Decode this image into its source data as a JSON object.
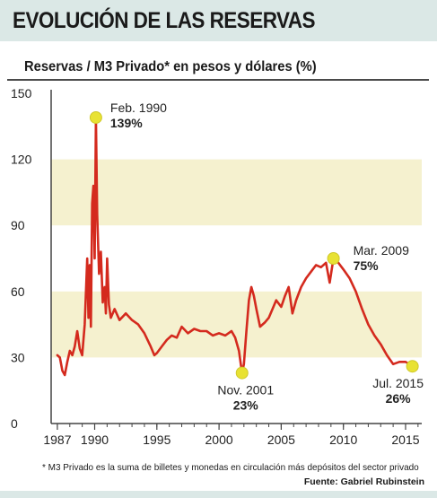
{
  "header": {
    "title": "EVOLUCIÓN DE LAS RESERVAS",
    "subtitle": "Reservas / M3 Privado* en pesos y dólares (%)"
  },
  "footer": {
    "footnote": "* M3 Privado es la suma de billetes y monedas en circulación más depósitos del sector privado",
    "source": "Fuente: Gabriel Rubinstein"
  },
  "colors": {
    "line": "#d42a1e",
    "band": "#f5f1cf",
    "marker": "#e8e233",
    "header_bg": "#dbe8e6",
    "axis": "#444444"
  },
  "chart_data": {
    "type": "line",
    "title": "Reservas / M3 Privado* en pesos y dólares (%)",
    "ylim": [
      0,
      150
    ],
    "xlim": [
      1986.5,
      2016.3
    ],
    "y_ticks": [
      0,
      30,
      60,
      90,
      120,
      150
    ],
    "x_ticks": [
      1987,
      1990,
      1995,
      2000,
      2005,
      2010,
      2015
    ],
    "grid": "alternating horizontal bands",
    "series": [
      {
        "points": [
          [
            1987.0,
            31
          ],
          [
            1987.2,
            30
          ],
          [
            1987.4,
            24
          ],
          [
            1987.6,
            22
          ],
          [
            1987.8,
            28
          ],
          [
            1988.0,
            33
          ],
          [
            1988.2,
            31
          ],
          [
            1988.4,
            35
          ],
          [
            1988.6,
            42
          ],
          [
            1988.8,
            34
          ],
          [
            1989.0,
            31
          ],
          [
            1989.2,
            45
          ],
          [
            1989.4,
            75
          ],
          [
            1989.5,
            48
          ],
          [
            1989.6,
            72
          ],
          [
            1989.7,
            44
          ],
          [
            1989.8,
            100
          ],
          [
            1989.9,
            108
          ],
          [
            1990.0,
            75
          ],
          [
            1990.1,
            139
          ],
          [
            1990.2,
            95
          ],
          [
            1990.35,
            68
          ],
          [
            1990.5,
            78
          ],
          [
            1990.65,
            55
          ],
          [
            1990.8,
            62
          ],
          [
            1990.9,
            50
          ],
          [
            1991.0,
            75
          ],
          [
            1991.15,
            54
          ],
          [
            1991.3,
            48
          ],
          [
            1991.6,
            52
          ],
          [
            1992.0,
            47
          ],
          [
            1992.5,
            50
          ],
          [
            1993.0,
            47
          ],
          [
            1993.5,
            45
          ],
          [
            1994.0,
            41
          ],
          [
            1994.5,
            35
          ],
          [
            1994.8,
            31
          ],
          [
            1995.0,
            32
          ],
          [
            1995.4,
            35
          ],
          [
            1995.8,
            38
          ],
          [
            1996.2,
            40
          ],
          [
            1996.6,
            39
          ],
          [
            1997.0,
            44
          ],
          [
            1997.5,
            41
          ],
          [
            1998.0,
            43
          ],
          [
            1998.5,
            42
          ],
          [
            1999.0,
            42
          ],
          [
            1999.5,
            40
          ],
          [
            2000.0,
            41
          ],
          [
            2000.5,
            40
          ],
          [
            2001.0,
            42
          ],
          [
            2001.3,
            39
          ],
          [
            2001.6,
            33
          ],
          [
            2001.85,
            23
          ],
          [
            2002.0,
            27
          ],
          [
            2002.2,
            42
          ],
          [
            2002.4,
            56
          ],
          [
            2002.6,
            62
          ],
          [
            2002.8,
            58
          ],
          [
            2003.0,
            52
          ],
          [
            2003.3,
            44
          ],
          [
            2003.7,
            46
          ],
          [
            2004.0,
            48
          ],
          [
            2004.3,
            52
          ],
          [
            2004.6,
            56
          ],
          [
            2005.0,
            53
          ],
          [
            2005.3,
            58
          ],
          [
            2005.6,
            62
          ],
          [
            2005.9,
            50
          ],
          [
            2006.2,
            56
          ],
          [
            2006.6,
            62
          ],
          [
            2007.0,
            66
          ],
          [
            2007.4,
            69
          ],
          [
            2007.8,
            72
          ],
          [
            2008.2,
            71
          ],
          [
            2008.6,
            73
          ],
          [
            2008.9,
            64
          ],
          [
            2009.2,
            75
          ],
          [
            2009.6,
            73
          ],
          [
            2010.0,
            70
          ],
          [
            2010.5,
            66
          ],
          [
            2011.0,
            60
          ],
          [
            2011.5,
            52
          ],
          [
            2012.0,
            45
          ],
          [
            2012.5,
            40
          ],
          [
            2013.0,
            36
          ],
          [
            2013.5,
            31
          ],
          [
            2014.0,
            27
          ],
          [
            2014.5,
            28
          ],
          [
            2015.0,
            28
          ],
          [
            2015.3,
            27
          ],
          [
            2015.55,
            26
          ],
          [
            2015.8,
            26.5
          ]
        ]
      }
    ],
    "annotations": [
      {
        "x": 1990.1,
        "y": 139,
        "date": "Feb. 1990",
        "value": "139%"
      },
      {
        "x": 2001.85,
        "y": 23,
        "date": "Nov. 2001",
        "value": "23%"
      },
      {
        "x": 2009.2,
        "y": 75,
        "date": "Mar. 2009",
        "value": "75%"
      },
      {
        "x": 2015.55,
        "y": 26,
        "date": "Jul. 2015",
        "value": "26%"
      }
    ]
  }
}
